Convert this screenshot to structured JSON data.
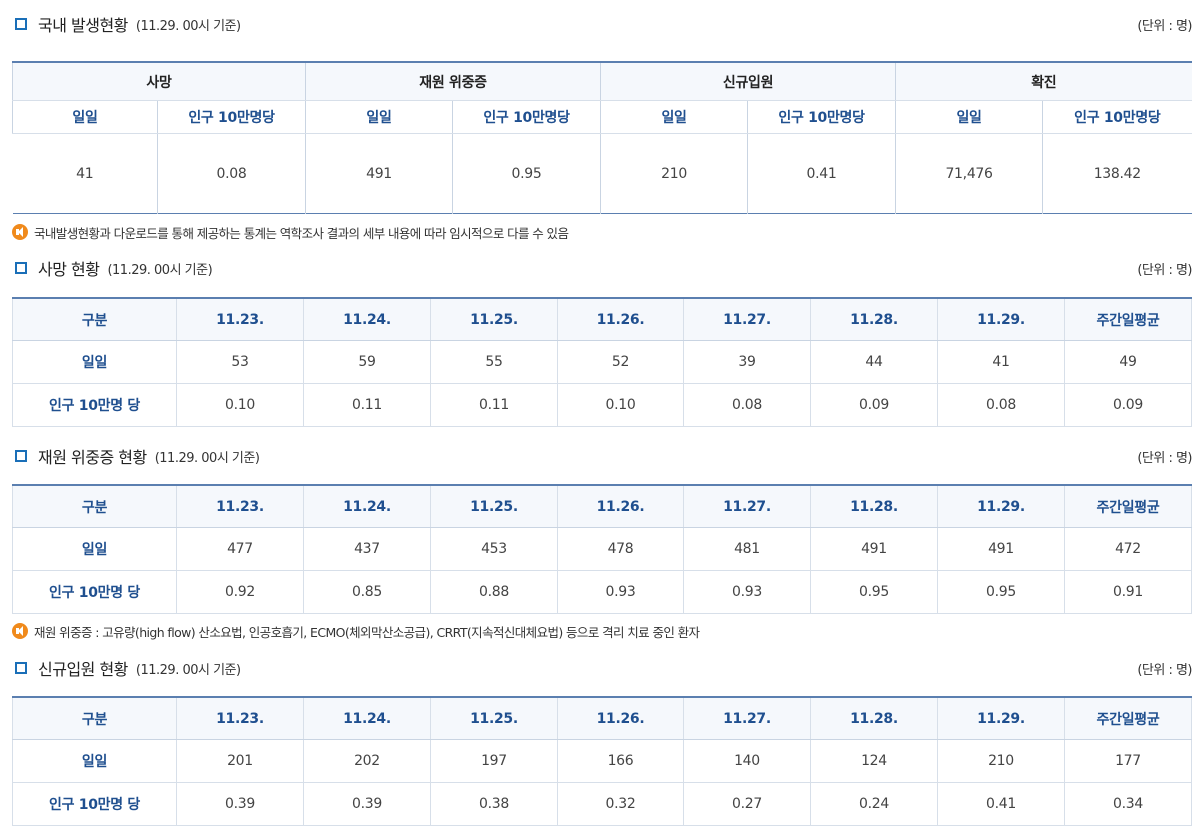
{
  "overview": {
    "title": "국내 발생현황",
    "basis": "(11.29. 00시 기준)",
    "unit": "(단위 : 명)",
    "groups": [
      "사망",
      "재원 위중증",
      "신규입원",
      "확진"
    ],
    "subheaders": [
      "일일",
      "인구 10만명당",
      "일일",
      "인구 10만명당",
      "일일",
      "인구 10만명당",
      "일일",
      "인구 10만명당"
    ],
    "values": [
      "41",
      "0.08",
      "491",
      "0.95",
      "210",
      "0.41",
      "71,476",
      "138.42"
    ],
    "note": "국내발생현황과 다운로드를 통해 제공하는 통계는 역학조사 결과의 세부 내용에 따라 임시적으로 다를 수 있음"
  },
  "deaths": {
    "title": "사망 현황",
    "basis": "(11.29. 00시 기준)",
    "unit": "(단위 : 명)",
    "headers": [
      "구분",
      "11.23.",
      "11.24.",
      "11.25.",
      "11.26.",
      "11.27.",
      "11.28.",
      "11.29.",
      "주간일평균"
    ],
    "rows": [
      {
        "label": "일일",
        "values": [
          "53",
          "59",
          "55",
          "52",
          "39",
          "44",
          "41",
          "49"
        ]
      },
      {
        "label": "인구 10만명 당",
        "values": [
          "0.10",
          "0.11",
          "0.11",
          "0.10",
          "0.08",
          "0.09",
          "0.08",
          "0.09"
        ]
      }
    ]
  },
  "critical": {
    "title": "재원 위중증 현황",
    "basis": "(11.29. 00시 기준)",
    "unit": "(단위 : 명)",
    "headers": [
      "구분",
      "11.23.",
      "11.24.",
      "11.25.",
      "11.26.",
      "11.27.",
      "11.28.",
      "11.29.",
      "주간일평균"
    ],
    "rows": [
      {
        "label": "일일",
        "values": [
          "477",
          "437",
          "453",
          "478",
          "481",
          "491",
          "491",
          "472"
        ]
      },
      {
        "label": "인구 10만명 당",
        "values": [
          "0.92",
          "0.85",
          "0.88",
          "0.93",
          "0.93",
          "0.95",
          "0.95",
          "0.91"
        ]
      }
    ],
    "note": "재원 위중증 : 고유량(high flow) 산소요법, 인공호흡기, ECMO(체외막산소공급), CRRT(지속적신대체요법) 등으로 격리 치료 중인 환자"
  },
  "admissions": {
    "title": "신규입원 현황",
    "basis": "(11.29. 00시 기준)",
    "unit": "(단위 : 명)",
    "headers": [
      "구분",
      "11.23.",
      "11.24.",
      "11.25.",
      "11.26.",
      "11.27.",
      "11.28.",
      "11.29.",
      "주간일평균"
    ],
    "rows": [
      {
        "label": "일일",
        "values": [
          "201",
          "202",
          "197",
          "166",
          "140",
          "124",
          "210",
          "177"
        ]
      },
      {
        "label": "인구 10만명 당",
        "values": [
          "0.39",
          "0.39",
          "0.38",
          "0.32",
          "0.27",
          "0.24",
          "0.41",
          "0.34"
        ]
      }
    ]
  },
  "colors": {
    "accent": "#1a6fb8",
    "header_text": "#1f4f8f",
    "header_bg": "#f5f8fc",
    "note_icon": "#f08a1c"
  },
  "icons": {
    "section": "square-bullet-icon",
    "note": "speaker-icon"
  }
}
